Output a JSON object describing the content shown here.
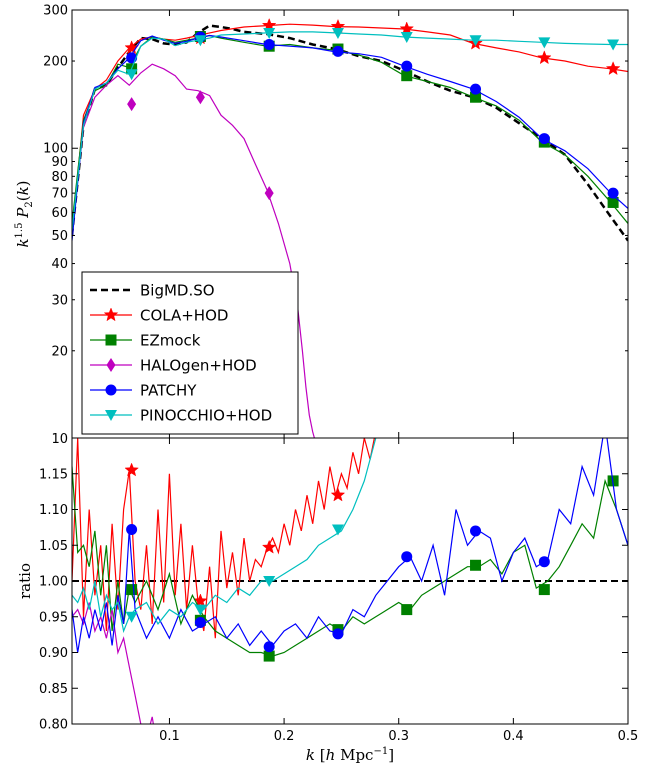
{
  "chart_data": [
    {
      "type": "line",
      "panel": "top",
      "ylabel": "k^{1.5} P_2(k)",
      "yscale": "log",
      "ylim": [
        10,
        300
      ],
      "xlim": [
        0.015,
        0.5
      ],
      "yticks": [
        10,
        20,
        30,
        40,
        50,
        60,
        70,
        80,
        90,
        100,
        200,
        300
      ],
      "legend": "lower-left",
      "series": [
        {
          "name": "BigMD.SO",
          "color": "#000000",
          "dash": true,
          "marker": "none",
          "x": [
            0.015,
            0.025,
            0.035,
            0.045,
            0.055,
            0.065,
            0.075,
            0.085,
            0.095,
            0.105,
            0.115,
            0.125,
            0.135,
            0.145,
            0.155,
            0.165,
            0.185,
            0.205,
            0.225,
            0.245,
            0.265,
            0.285,
            0.305,
            0.325,
            0.345,
            0.365,
            0.385,
            0.405,
            0.425,
            0.445,
            0.465,
            0.485,
            0.5
          ],
          "y": [
            50,
            120,
            160,
            165,
            190,
            215,
            240,
            238,
            230,
            228,
            232,
            250,
            265,
            262,
            258,
            252,
            248,
            240,
            228,
            220,
            208,
            200,
            185,
            170,
            158,
            150,
            138,
            122,
            108,
            95,
            75,
            58,
            48
          ]
        },
        {
          "name": "COLA+HOD",
          "color": "#ff0000",
          "marker": "star",
          "x": [
            0.015,
            0.025,
            0.035,
            0.045,
            0.055,
            0.065,
            0.075,
            0.085,
            0.095,
            0.105,
            0.115,
            0.125,
            0.135,
            0.145,
            0.165,
            0.185,
            0.205,
            0.225,
            0.245,
            0.265,
            0.285,
            0.305,
            0.325,
            0.345,
            0.365,
            0.385,
            0.405,
            0.425,
            0.445,
            0.465,
            0.485,
            0.5
          ],
          "y": [
            50,
            130,
            160,
            172,
            200,
            222,
            238,
            242,
            238,
            236,
            240,
            245,
            250,
            255,
            262,
            265,
            268,
            266,
            263,
            262,
            260,
            258,
            252,
            246,
            230,
            222,
            215,
            205,
            200,
            192,
            188,
            184
          ],
          "mx": [
            0.067,
            0.127,
            0.187,
            0.247,
            0.307,
            0.367,
            0.427,
            0.487
          ],
          "my": [
            222,
            240,
            265,
            263,
            258,
            230,
            205,
            188
          ]
        },
        {
          "name": "EZmock",
          "color": "#008000",
          "marker": "square",
          "x": [
            0.015,
            0.025,
            0.035,
            0.045,
            0.055,
            0.065,
            0.075,
            0.085,
            0.095,
            0.105,
            0.115,
            0.125,
            0.135,
            0.145,
            0.165,
            0.185,
            0.205,
            0.225,
            0.245,
            0.265,
            0.285,
            0.305,
            0.325,
            0.345,
            0.365,
            0.385,
            0.405,
            0.425,
            0.445,
            0.465,
            0.485,
            0.5
          ],
          "y": [
            55,
            125,
            158,
            165,
            195,
            190,
            225,
            242,
            238,
            232,
            236,
            240,
            245,
            240,
            232,
            225,
            228,
            222,
            218,
            210,
            198,
            178,
            170,
            162,
            150,
            140,
            125,
            105,
            95,
            80,
            65,
            55
          ],
          "mx": [
            0.067,
            0.127,
            0.187,
            0.247,
            0.307,
            0.367,
            0.427,
            0.487
          ],
          "my": [
            188,
            243,
            225,
            220,
            178,
            150,
            105,
            65
          ]
        },
        {
          "name": "HALOgen+HOD",
          "color": "#bf00bf",
          "marker": "diamond",
          "x": [
            0.015,
            0.025,
            0.035,
            0.045,
            0.055,
            0.065,
            0.075,
            0.085,
            0.095,
            0.105,
            0.115,
            0.125,
            0.135,
            0.145,
            0.155,
            0.165,
            0.175,
            0.185,
            0.195,
            0.205,
            0.212,
            0.216,
            0.219,
            0.222,
            0.225,
            0.228
          ],
          "y": [
            52,
            118,
            150,
            165,
            178,
            165,
            182,
            195,
            188,
            178,
            160,
            158,
            152,
            130,
            120,
            108,
            88,
            72,
            55,
            40,
            28,
            20,
            15,
            12,
            10.5,
            9.5
          ],
          "mx": [
            0.067,
            0.127,
            0.187
          ],
          "my": [
            142,
            150,
            70
          ]
        },
        {
          "name": "PATCHY",
          "color": "#0000ff",
          "marker": "circle",
          "x": [
            0.015,
            0.025,
            0.035,
            0.045,
            0.055,
            0.065,
            0.075,
            0.085,
            0.095,
            0.105,
            0.115,
            0.125,
            0.135,
            0.145,
            0.165,
            0.185,
            0.205,
            0.225,
            0.245,
            0.265,
            0.285,
            0.305,
            0.325,
            0.345,
            0.365,
            0.385,
            0.405,
            0.425,
            0.445,
            0.465,
            0.485,
            0.5
          ],
          "y": [
            48,
            122,
            162,
            168,
            188,
            205,
            235,
            244,
            236,
            230,
            234,
            240,
            245,
            242,
            235,
            228,
            225,
            222,
            215,
            212,
            206,
            192,
            180,
            170,
            160,
            145,
            128,
            108,
            98,
            85,
            70,
            62
          ],
          "mx": [
            0.067,
            0.127,
            0.187,
            0.247,
            0.307,
            0.367,
            0.427,
            0.487
          ],
          "my": [
            205,
            242,
            228,
            216,
            192,
            160,
            108,
            70
          ]
        },
        {
          "name": "PINOCCHIO+HOD",
          "color": "#00bfbf",
          "marker": "triangle-down",
          "x": [
            0.015,
            0.025,
            0.035,
            0.045,
            0.055,
            0.065,
            0.075,
            0.085,
            0.095,
            0.105,
            0.115,
            0.125,
            0.135,
            0.145,
            0.165,
            0.185,
            0.205,
            0.225,
            0.245,
            0.265,
            0.285,
            0.305,
            0.325,
            0.345,
            0.365,
            0.385,
            0.405,
            0.425,
            0.445,
            0.465,
            0.485,
            0.5
          ],
          "y": [
            52,
            120,
            160,
            168,
            186,
            180,
            225,
            240,
            238,
            226,
            232,
            236,
            240,
            246,
            248,
            250,
            252,
            252,
            250,
            248,
            246,
            242,
            240,
            238,
            236,
            236,
            234,
            232,
            230,
            229,
            228,
            228
          ],
          "mx": [
            0.067,
            0.127,
            0.187,
            0.247,
            0.307,
            0.367,
            0.427,
            0.487
          ],
          "my": [
            180,
            236,
            250,
            250,
            242,
            236,
            232,
            228
          ]
        }
      ]
    },
    {
      "type": "line",
      "panel": "bottom",
      "xlabel": "k [h Mpc^{-1}]",
      "ylabel": "ratio",
      "xlim": [
        0.015,
        0.5
      ],
      "ylim": [
        0.8,
        1.2
      ],
      "xticks": [
        0.1,
        0.2,
        0.3,
        0.4,
        0.5
      ],
      "yticks": [
        0.8,
        0.85,
        0.9,
        0.95,
        1.0,
        1.05,
        1.1,
        1.15
      ],
      "reference_line": 1.0,
      "series": [
        {
          "name": "COLA+HOD",
          "color": "#ff0000",
          "marker": "star",
          "x": [
            0.015,
            0.02,
            0.025,
            0.03,
            0.035,
            0.04,
            0.045,
            0.05,
            0.055,
            0.06,
            0.065,
            0.07,
            0.075,
            0.08,
            0.085,
            0.09,
            0.095,
            0.1,
            0.105,
            0.11,
            0.115,
            0.12,
            0.125,
            0.13,
            0.135,
            0.14,
            0.145,
            0.15,
            0.155,
            0.16,
            0.165,
            0.17,
            0.175,
            0.18,
            0.185,
            0.19,
            0.195,
            0.2,
            0.205,
            0.21,
            0.215,
            0.22,
            0.225,
            0.23,
            0.235,
            0.24,
            0.245,
            0.25,
            0.255,
            0.26,
            0.265,
            0.27,
            0.275,
            0.28
          ],
          "y": [
            1.0,
            1.2,
            0.95,
            1.1,
            0.98,
            1.05,
            0.93,
            1.08,
            0.96,
            1.1,
            1.155,
            1.0,
            0.96,
            1.05,
            0.94,
            1.1,
            0.97,
            1.15,
            0.98,
            1.08,
            0.96,
            1.05,
            0.97,
            0.93,
            1.02,
            0.92,
            1.07,
            0.99,
            1.04,
            0.98,
            1.06,
            1.0,
            1.03,
            1.02,
            1.045,
            1.06,
            1.04,
            1.08,
            1.05,
            1.1,
            1.07,
            1.12,
            1.08,
            1.14,
            1.1,
            1.16,
            1.12,
            1.15,
            1.13,
            1.18,
            1.15,
            1.2,
            1.17,
            1.21
          ],
          "mx": [
            0.067,
            0.127,
            0.187,
            0.247
          ],
          "my": [
            1.155,
            0.972,
            1.047,
            1.12
          ]
        },
        {
          "name": "EZmock",
          "color": "#008000",
          "marker": "square",
          "x": [
            0.015,
            0.02,
            0.025,
            0.03,
            0.035,
            0.04,
            0.045,
            0.05,
            0.055,
            0.06,
            0.065,
            0.07,
            0.08,
            0.09,
            0.1,
            0.11,
            0.12,
            0.13,
            0.14,
            0.15,
            0.16,
            0.17,
            0.18,
            0.19,
            0.2,
            0.21,
            0.22,
            0.23,
            0.24,
            0.25,
            0.26,
            0.27,
            0.28,
            0.29,
            0.3,
            0.31,
            0.32,
            0.33,
            0.34,
            0.35,
            0.36,
            0.37,
            0.38,
            0.39,
            0.4,
            0.41,
            0.42,
            0.43,
            0.44,
            0.45,
            0.46,
            0.47,
            0.48,
            0.49,
            0.5
          ],
          "y": [
            1.16,
            1.04,
            1.05,
            1.02,
            1.07,
            0.98,
            1.05,
            0.93,
            1.0,
            0.94,
            0.99,
            0.97,
            1.0,
            0.96,
            1.01,
            0.94,
            0.98,
            0.95,
            0.93,
            0.92,
            0.91,
            0.9,
            0.9,
            0.895,
            0.9,
            0.91,
            0.92,
            0.93,
            0.94,
            0.93,
            0.95,
            0.94,
            0.95,
            0.96,
            0.97,
            0.96,
            0.98,
            0.99,
            1.0,
            1.01,
            1.02,
            1.02,
            1.03,
            1.01,
            1.04,
            1.05,
            0.99,
            1.0,
            1.02,
            1.05,
            1.08,
            1.06,
            1.14,
            1.1,
            1.05
          ],
          "mx": [
            0.067,
            0.127,
            0.187,
            0.247,
            0.307,
            0.367,
            0.427,
            0.487
          ],
          "my": [
            0.988,
            0.945,
            0.895,
            0.932,
            0.96,
            1.022,
            0.988,
            1.14
          ]
        },
        {
          "name": "HALOgen+HOD",
          "color": "#bf00bf",
          "marker": "none",
          "x": [
            0.015,
            0.02,
            0.025,
            0.03,
            0.035,
            0.04,
            0.045,
            0.05,
            0.055,
            0.06,
            0.065,
            0.07,
            0.075,
            0.08,
            0.085,
            0.09
          ],
          "y": [
            0.95,
            0.96,
            0.94,
            0.97,
            0.93,
            0.95,
            0.92,
            0.96,
            0.9,
            0.92,
            0.88,
            0.84,
            0.8,
            0.78,
            0.81,
            0.76
          ]
        },
        {
          "name": "PATCHY",
          "color": "#0000ff",
          "marker": "circle",
          "x": [
            0.015,
            0.02,
            0.025,
            0.03,
            0.035,
            0.04,
            0.045,
            0.05,
            0.055,
            0.06,
            0.065,
            0.07,
            0.08,
            0.09,
            0.1,
            0.11,
            0.12,
            0.13,
            0.14,
            0.15,
            0.16,
            0.17,
            0.18,
            0.19,
            0.2,
            0.21,
            0.22,
            0.23,
            0.24,
            0.25,
            0.26,
            0.27,
            0.28,
            0.29,
            0.3,
            0.31,
            0.32,
            0.33,
            0.34,
            0.35,
            0.36,
            0.37,
            0.38,
            0.39,
            0.4,
            0.41,
            0.42,
            0.43,
            0.44,
            0.45,
            0.46,
            0.47,
            0.48,
            0.49,
            0.5
          ],
          "y": [
            0.96,
            0.9,
            0.95,
            0.92,
            0.96,
            0.93,
            0.97,
            0.91,
            0.98,
            0.94,
            1.072,
            0.96,
            0.92,
            0.95,
            0.92,
            0.96,
            0.93,
            0.94,
            0.95,
            0.92,
            0.94,
            0.91,
            0.93,
            0.91,
            0.93,
            0.94,
            0.92,
            0.95,
            0.93,
            0.926,
            0.96,
            0.95,
            0.98,
            1.0,
            1.02,
            1.034,
            1.0,
            1.05,
            0.98,
            1.1,
            1.05,
            1.07,
            1.06,
            1.0,
            1.04,
            1.06,
            1.02,
            1.03,
            1.1,
            1.08,
            1.16,
            1.12,
            1.22,
            1.1,
            1.05
          ],
          "mx": [
            0.067,
            0.127,
            0.187,
            0.247,
            0.307,
            0.367,
            0.427
          ],
          "my": [
            1.072,
            0.942,
            0.908,
            0.926,
            1.034,
            1.07,
            1.027
          ]
        },
        {
          "name": "PINOCCHIO+HOD",
          "color": "#00bfbf",
          "marker": "triangle-down",
          "x": [
            0.015,
            0.02,
            0.025,
            0.03,
            0.035,
            0.04,
            0.045,
            0.05,
            0.055,
            0.06,
            0.065,
            0.07,
            0.08,
            0.09,
            0.1,
            0.11,
            0.12,
            0.13,
            0.14,
            0.15,
            0.16,
            0.17,
            0.18,
            0.19,
            0.2,
            0.21,
            0.22,
            0.23,
            0.24,
            0.25,
            0.26,
            0.27,
            0.28
          ],
          "y": [
            0.98,
            0.97,
            0.99,
            0.96,
            1.0,
            0.95,
            0.98,
            0.96,
            0.97,
            0.93,
            0.95,
            0.96,
            0.97,
            0.94,
            0.96,
            0.95,
            0.97,
            0.96,
            0.98,
            0.97,
            0.99,
            0.98,
            1.0,
            1.0,
            1.01,
            1.02,
            1.03,
            1.05,
            1.06,
            1.07,
            1.1,
            1.14,
            1.2
          ],
          "mx": [
            0.067,
            0.127,
            0.187,
            0.247
          ],
          "my": [
            0.95,
            0.96,
            1.0,
            1.072
          ]
        }
      ]
    }
  ]
}
